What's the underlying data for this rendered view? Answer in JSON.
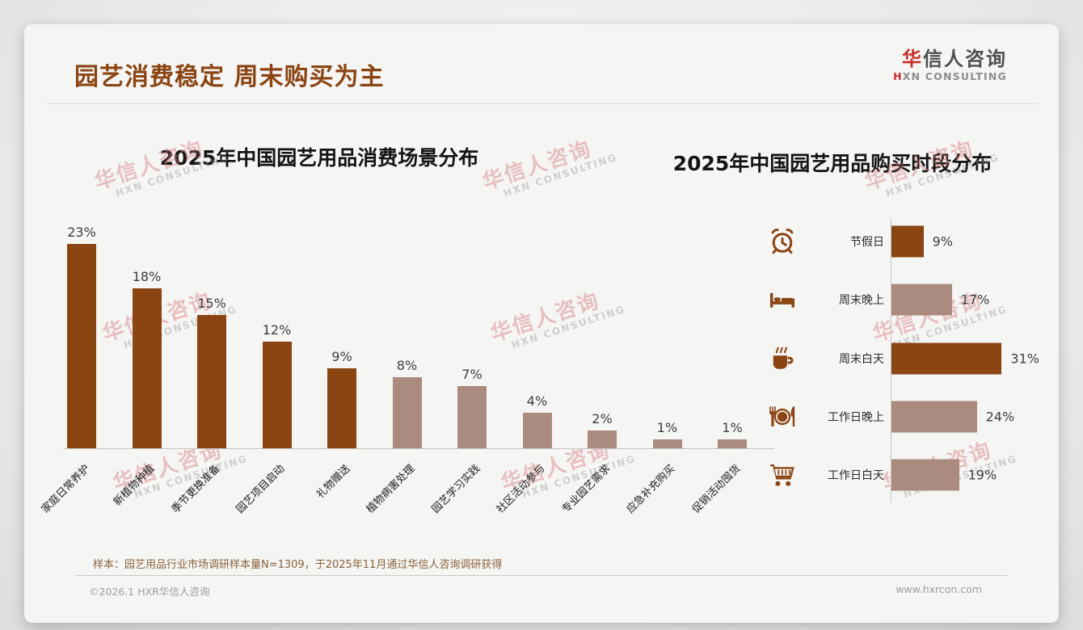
{
  "page": {
    "title": "园艺消费稳定 周末购买为主",
    "logo": {
      "main_accent": "华",
      "main_rest": "信人咨询",
      "sub_accent": "H",
      "sub_rest": "XN CONSULTING"
    },
    "note": "样本：园艺用品行业市场调研样本量N=1309，于2025年11月通过华信人咨询调研获得",
    "footer_left": "©2026.1 HXR华信人咨询",
    "footer_right": "www.hxrcon.com",
    "watermark": {
      "line1": "华信人咨询",
      "line2": "HXN CONSULTING"
    }
  },
  "colors": {
    "dark": "#8B4513",
    "light": "#AB8B80",
    "title_brown": "#8B4513",
    "logo_red": "#C92F2A",
    "icon_brown": "#8B4513",
    "axis_gray": "#C9C5C1"
  },
  "chart_data": [
    {
      "type": "bar",
      "title": "2025年中国园艺用品消费场景分布",
      "categories": [
        "家庭日常养护",
        "新植物种植",
        "季节更换准备",
        "园艺项目启动",
        "礼物赠送",
        "植物病害处理",
        "园艺学习实践",
        "社区活动参与",
        "专业园艺需求",
        "应急补充购买",
        "促销活动囤货"
      ],
      "values": [
        23,
        18,
        15,
        12,
        9,
        8,
        7,
        4,
        2,
        1,
        1
      ],
      "value_labels": [
        "23%",
        "18%",
        "15%",
        "12%",
        "9%",
        "8%",
        "7%",
        "4%",
        "2%",
        "1%",
        "1%"
      ],
      "unit": "%",
      "bar_colors": [
        "dark",
        "dark",
        "dark",
        "dark",
        "dark",
        "light",
        "light",
        "light",
        "light",
        "light",
        "light"
      ],
      "xlabel": "",
      "ylabel": "",
      "ylim": [
        0,
        25
      ],
      "grid": false,
      "legend": "none"
    },
    {
      "type": "bar",
      "orientation": "horizontal",
      "title": "2025年中国园艺用品购买时段分布",
      "categories": [
        "节假日",
        "周末晚上",
        "周末白天",
        "工作日晚上",
        "工作日白天"
      ],
      "values": [
        9,
        17,
        31,
        24,
        19
      ],
      "value_labels": [
        "9%",
        "17%",
        "31%",
        "24%",
        "19%"
      ],
      "unit": "%",
      "bar_colors": [
        "dark",
        "light",
        "dark",
        "light",
        "light"
      ],
      "icons": [
        "alarm-clock",
        "bed",
        "coffee",
        "dining-plate",
        "shopping-cart"
      ],
      "xlabel": "",
      "ylabel": "",
      "xlim": [
        0,
        35
      ],
      "grid": false,
      "legend": "none"
    }
  ]
}
